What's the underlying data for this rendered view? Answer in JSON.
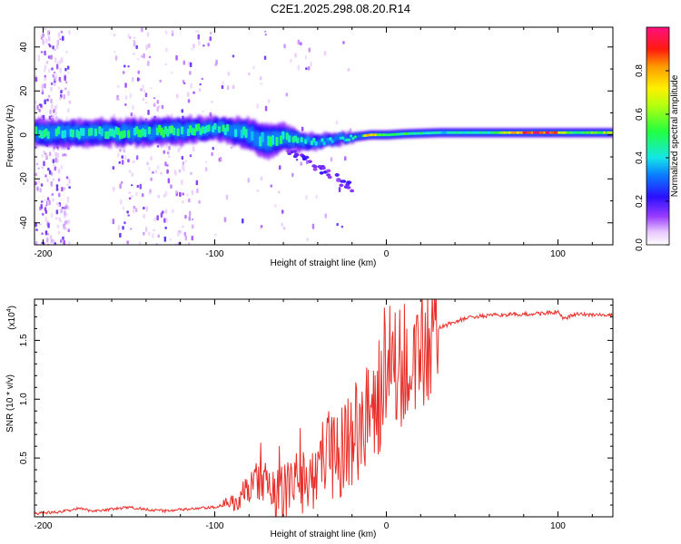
{
  "title": "C2E1.2025.298.08.20.R14",
  "chart_data": [
    {
      "type": "heatmap",
      "xlabel": "Height of straight line (km)",
      "ylabel": "Frequency (Hz)",
      "xlim": [
        -205,
        132
      ],
      "ylim": [
        -50,
        49
      ],
      "xticks": [
        -200,
        -100,
        0,
        100
      ],
      "xtick_labels": [
        "-200",
        "-100",
        "0",
        "100"
      ],
      "yticks": [
        -40,
        -20,
        0,
        20,
        40
      ],
      "ytick_labels": [
        "-40",
        "-20",
        "0",
        "20",
        "40"
      ],
      "ridge": {
        "x": [
          -205,
          -180,
          -150,
          -120,
          -100,
          -90,
          -80,
          -70,
          -60,
          -50,
          -40,
          -30,
          -20,
          -10,
          0,
          10,
          30,
          60,
          80,
          95,
          110,
          132
        ],
        "y": [
          1,
          1,
          1,
          2,
          3,
          2,
          0,
          -3,
          -1,
          -3,
          -3,
          -2,
          -1,
          0,
          0,
          0.5,
          1,
          1,
          1,
          1,
          1,
          1
        ],
        "width_hz": [
          6,
          6,
          6,
          6,
          5,
          6,
          7,
          8,
          6,
          4,
          3,
          2.5,
          2,
          2,
          2,
          2,
          2,
          2,
          2,
          2,
          2,
          2
        ],
        "amplitude": [
          0.45,
          0.45,
          0.45,
          0.5,
          0.45,
          0.45,
          0.4,
          0.45,
          0.45,
          0.4,
          0.4,
          0.4,
          0.4,
          0.75,
          0.45,
          0.5,
          0.4,
          0.45,
          0.9,
          0.9,
          0.45,
          0.7
        ]
      },
      "colorbar": {
        "label": "Normalized spectral amplitude",
        "range": [
          0,
          1
        ],
        "ticks": [
          0.0,
          0.2,
          0.4,
          0.6,
          0.8
        ],
        "tick_labels": [
          "0.0",
          "0.2",
          "0.4",
          "0.6",
          "0.8"
        ]
      }
    },
    {
      "type": "line",
      "xlabel": "Height of straight line (km)",
      "ylabel": "SNR (10 * v/v)",
      "y_scale_label": "(x10",
      "y_scale_exp": "4",
      "y_scale_close": ")",
      "xlim": [
        -205,
        132
      ],
      "ylim": [
        0,
        1.85
      ],
      "xticks": [
        -200,
        -100,
        0,
        100
      ],
      "xtick_labels": [
        "-200",
        "-100",
        "0",
        "100"
      ],
      "yticks": [
        0.5,
        1.0,
        1.5
      ],
      "ytick_labels": [
        "0.5",
        "1.0",
        "1.5"
      ],
      "color": "#e8302a",
      "series": [
        {
          "name": "SNR",
          "x": [
            -205,
            -190,
            -180,
            -170,
            -150,
            -130,
            -110,
            -100,
            -95,
            -90,
            -85,
            -80,
            -75,
            -70,
            -65,
            -60,
            -55,
            -50,
            -45,
            -40,
            -35,
            -30,
            -25,
            -20,
            -15,
            -10,
            -5,
            0,
            5,
            10,
            15,
            20,
            25,
            30,
            40,
            50,
            60,
            70,
            80,
            90,
            100,
            103,
            110,
            120,
            132
          ],
          "y": [
            0.03,
            0.04,
            0.07,
            0.05,
            0.08,
            0.05,
            0.07,
            0.08,
            0.1,
            0.13,
            0.18,
            0.25,
            0.33,
            0.3,
            0.22,
            0.24,
            0.28,
            0.35,
            0.38,
            0.45,
            0.55,
            0.6,
            0.65,
            0.75,
            0.85,
            0.95,
            1.05,
            1.15,
            1.2,
            1.28,
            1.38,
            1.48,
            1.55,
            1.6,
            1.66,
            1.7,
            1.71,
            1.72,
            1.72,
            1.73,
            1.74,
            1.68,
            1.72,
            1.72,
            1.71
          ]
        }
      ]
    }
  ]
}
